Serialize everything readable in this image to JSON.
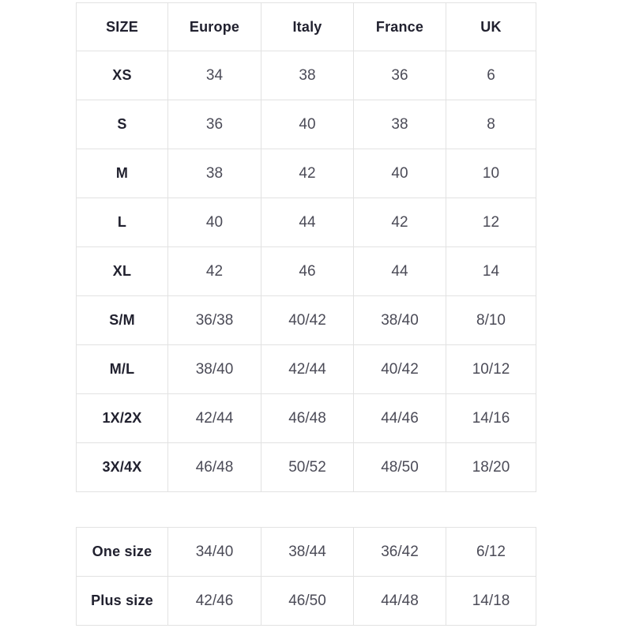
{
  "chart_data": [
    {
      "type": "table",
      "title": "Size conversion chart (main sizes)",
      "columns": [
        "SIZE",
        "Europe",
        "Italy",
        "France",
        "UK"
      ],
      "rows": [
        [
          "XS",
          "34",
          "38",
          "36",
          "6"
        ],
        [
          "S",
          "36",
          "40",
          "38",
          "8"
        ],
        [
          "M",
          "38",
          "42",
          "40",
          "10"
        ],
        [
          "L",
          "40",
          "44",
          "42",
          "12"
        ],
        [
          "XL",
          "42",
          "46",
          "44",
          "14"
        ],
        [
          "S/M",
          "36/38",
          "40/42",
          "38/40",
          "8/10"
        ],
        [
          "M/L",
          "38/40",
          "42/44",
          "40/42",
          "10/12"
        ],
        [
          "1X/2X",
          "42/44",
          "46/48",
          "44/46",
          "14/16"
        ],
        [
          "3X/4X",
          "46/48",
          "50/52",
          "48/50",
          "18/20"
        ]
      ],
      "layout": {
        "grid": true,
        "header_row": true,
        "text_align": "center"
      }
    },
    {
      "type": "table",
      "title": "Size conversion chart (one size / plus size)",
      "columns": [],
      "rows": [
        [
          "One size",
          "34/40",
          "38/44",
          "36/42",
          "6/12"
        ],
        [
          "Plus size",
          "42/46",
          "46/50",
          "44/48",
          "14/18"
        ]
      ],
      "layout": {
        "grid": true,
        "header_row": false,
        "text_align": "center"
      }
    }
  ],
  "colors": {
    "background": "#ffffff",
    "border": "#e2e2e2",
    "header_text": "#21212f",
    "value_text": "#4b4b57"
  }
}
